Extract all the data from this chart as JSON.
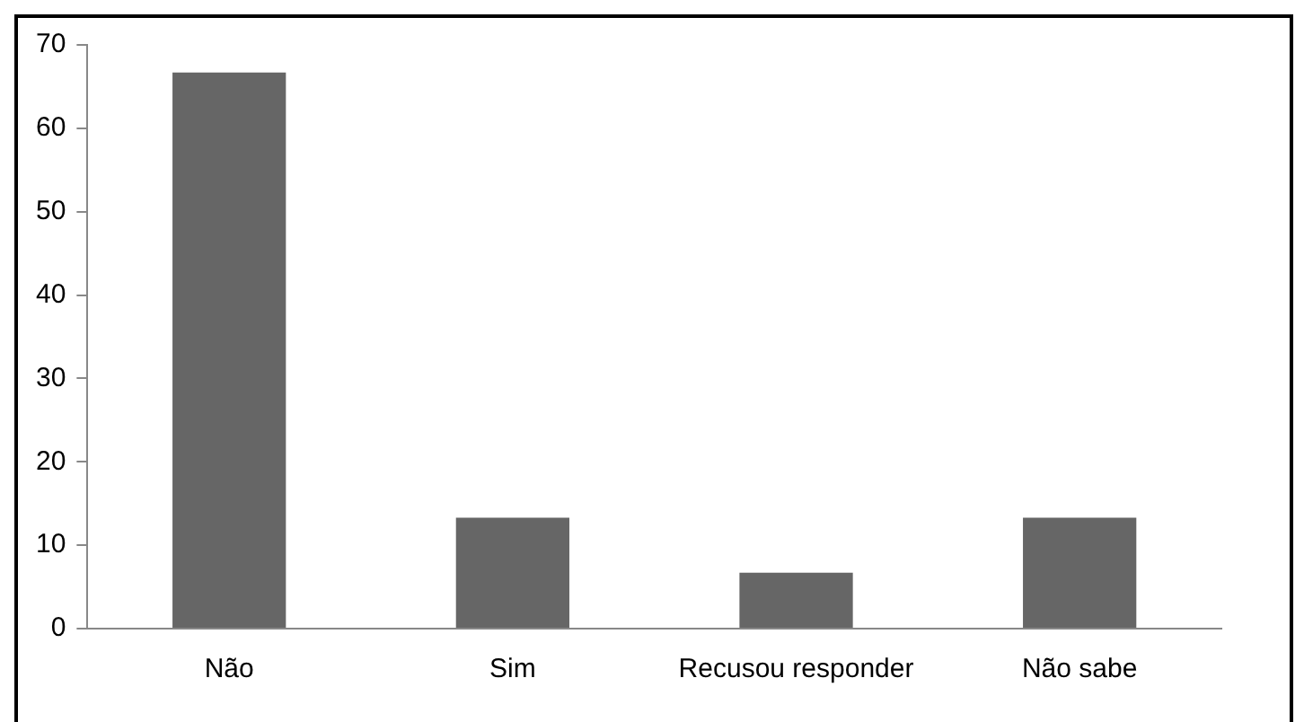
{
  "chart_data": {
    "type": "bar",
    "categories": [
      "Não",
      "Sim",
      "Recusou responder",
      "Não sabe"
    ],
    "values": [
      66.7,
      13.3,
      6.7,
      13.3
    ],
    "color": "#666666",
    "ylim": [
      0,
      70
    ],
    "yticks": [
      0,
      10,
      20,
      30,
      40,
      50,
      60,
      70
    ],
    "grid": false,
    "legend": false
  }
}
